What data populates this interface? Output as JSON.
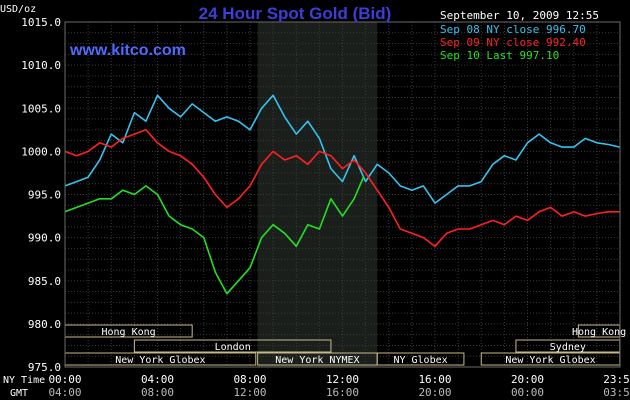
{
  "title": "24 Hour Spot Gold (Bid)",
  "website": "www.kitco.com",
  "timestamp": "September 10, 2009 12:55",
  "colors": {
    "background": "#000000",
    "grid": "#3a3a3a",
    "axis_text": "#ffffff",
    "title": "#3d3dd8",
    "website": "#4f6bff",
    "session_shade": "#1b1f1b",
    "market_box_border": "#c9b98a",
    "market_text": "#ffffff"
  },
  "legend": [
    {
      "label": "Sep 08 NY close 996.70",
      "color": "#33c3f0"
    },
    {
      "label": "Sep 09 NY close 992.40",
      "color": "#ff2020"
    },
    {
      "label": "Sep 10 Last 997.10",
      "color": "#22e022"
    }
  ],
  "axis": {
    "ylabel": "USD/oz",
    "ny_time_label": "NY Time",
    "gmt_label": "GMT",
    "ny_ticks": [
      "00:00",
      "04:00",
      "08:00",
      "12:00",
      "16:00",
      "20:00",
      "23:59"
    ],
    "gmt_ticks": [
      "04:00",
      "08:00",
      "12:00",
      "16:00",
      "20:00",
      "00:00",
      "03:59"
    ],
    "y_ticks": [
      "1015.0",
      "1010.0",
      "1005.0",
      "1000.0",
      "995.0",
      "990.0",
      "985.0",
      "980.0",
      "975.0"
    ]
  },
  "markets": [
    {
      "label": "Hong Kong",
      "start": 0,
      "end": 5.5,
      "row": 0
    },
    {
      "label": "Hong Kong",
      "start": 22.2,
      "end": 23.99,
      "row": 0
    },
    {
      "label": "London",
      "start": 3.0,
      "end": 11.5,
      "row": 1
    },
    {
      "label": "Sydney",
      "start": 19.5,
      "end": 23.99,
      "row": 1
    },
    {
      "label": "New York Globex",
      "start": 0,
      "end": 8.25,
      "row": 2
    },
    {
      "label": "New York NYMEX",
      "start": 8.33,
      "end": 13.5,
      "row": 2
    },
    {
      "label": "NY Globex",
      "start": 13.5,
      "end": 17.25,
      "row": 2
    },
    {
      "label": "New York Globex",
      "start": 18.0,
      "end": 23.99,
      "row": 2
    }
  ],
  "chart_data": {
    "type": "line",
    "xlabel": "NY Time",
    "ylabel": "USD/oz",
    "xlim": [
      0,
      24
    ],
    "ylim": [
      975,
      1015
    ],
    "grid": true,
    "session_highlight": [
      8.33,
      13.5
    ],
    "series": [
      {
        "name": "Sep 08 NY close 996.70",
        "color": "#33c3f0",
        "x": [
          0,
          0.5,
          1.0,
          1.5,
          2.0,
          2.5,
          3.0,
          3.5,
          4.0,
          4.5,
          5.0,
          5.5,
          6.0,
          6.5,
          7.0,
          7.5,
          8.0,
          8.5,
          9.0,
          9.5,
          10.0,
          10.5,
          11.0,
          11.5,
          12.0,
          12.5,
          13.0,
          13.5,
          14.0,
          14.5,
          15.0,
          15.5,
          16.0,
          16.5,
          17.0,
          17.5,
          18.0,
          18.5,
          19.0,
          19.5,
          20.0,
          20.5,
          21.0,
          21.5,
          22.0,
          22.5,
          23.0,
          23.5,
          23.99
        ],
        "values": [
          996.0,
          996.5,
          997.0,
          999.0,
          1002.0,
          1001.0,
          1004.5,
          1003.5,
          1006.5,
          1005.0,
          1004.0,
          1005.5,
          1004.5,
          1003.5,
          1004.0,
          1003.5,
          1002.5,
          1005.0,
          1006.5,
          1004.0,
          1002.0,
          1003.5,
          1001.5,
          998.0,
          996.5,
          999.5,
          996.5,
          998.5,
          997.5,
          996.0,
          995.5,
          996.0,
          994.0,
          995.0,
          996.0,
          996.0,
          996.5,
          998.5,
          999.5,
          999.0,
          1001.0,
          1002.0,
          1001.0,
          1000.5,
          1000.5,
          1001.5,
          1001.0,
          1000.8,
          1000.5
        ]
      },
      {
        "name": "Sep 09 NY close 992.40",
        "color": "#ff2020",
        "x": [
          0,
          0.5,
          1.0,
          1.5,
          2.0,
          2.5,
          3.0,
          3.5,
          4.0,
          4.5,
          5.0,
          5.5,
          6.0,
          6.5,
          7.0,
          7.5,
          8.0,
          8.5,
          9.0,
          9.5,
          10.0,
          10.5,
          11.0,
          11.5,
          12.0,
          12.5,
          13.0,
          13.5,
          14.0,
          14.5,
          15.0,
          15.5,
          16.0,
          16.5,
          17.0,
          17.5,
          18.0,
          18.5,
          19.0,
          19.5,
          20.0,
          20.5,
          21.0,
          21.5,
          22.0,
          22.5,
          23.0,
          23.5,
          23.99
        ],
        "values": [
          1000.0,
          999.5,
          1000.0,
          1001.0,
          1000.5,
          1001.5,
          1002.0,
          1002.5,
          1001.0,
          1000.0,
          999.5,
          998.5,
          997.0,
          995.0,
          993.5,
          994.5,
          996.0,
          998.5,
          1000.0,
          999.0,
          999.5,
          998.5,
          1000.0,
          999.5,
          998.0,
          999.0,
          997.5,
          995.5,
          993.5,
          991.0,
          990.5,
          990.0,
          989.0,
          990.5,
          991.0,
          991.0,
          991.5,
          992.0,
          991.5,
          992.5,
          992.0,
          993.0,
          993.5,
          992.5,
          993.0,
          992.5,
          992.8,
          993.0,
          993.0
        ]
      },
      {
        "name": "Sep 10 Last 997.10",
        "color": "#22e022",
        "x": [
          0,
          0.5,
          1.0,
          1.5,
          2.0,
          2.5,
          3.0,
          3.5,
          4.0,
          4.5,
          5.0,
          5.5,
          6.0,
          6.5,
          7.0,
          7.5,
          8.0,
          8.5,
          9.0,
          9.5,
          10.0,
          10.5,
          11.0,
          11.5,
          12.0,
          12.5,
          12.92
        ],
        "values": [
          993.0,
          993.5,
          994.0,
          994.5,
          994.5,
          995.5,
          995.0,
          996.0,
          995.0,
          992.5,
          991.5,
          991.0,
          990.0,
          986.0,
          983.5,
          985.0,
          986.5,
          990.0,
          991.5,
          990.5,
          989.0,
          991.5,
          991.0,
          994.5,
          992.5,
          994.5,
          997.1
        ]
      }
    ]
  }
}
